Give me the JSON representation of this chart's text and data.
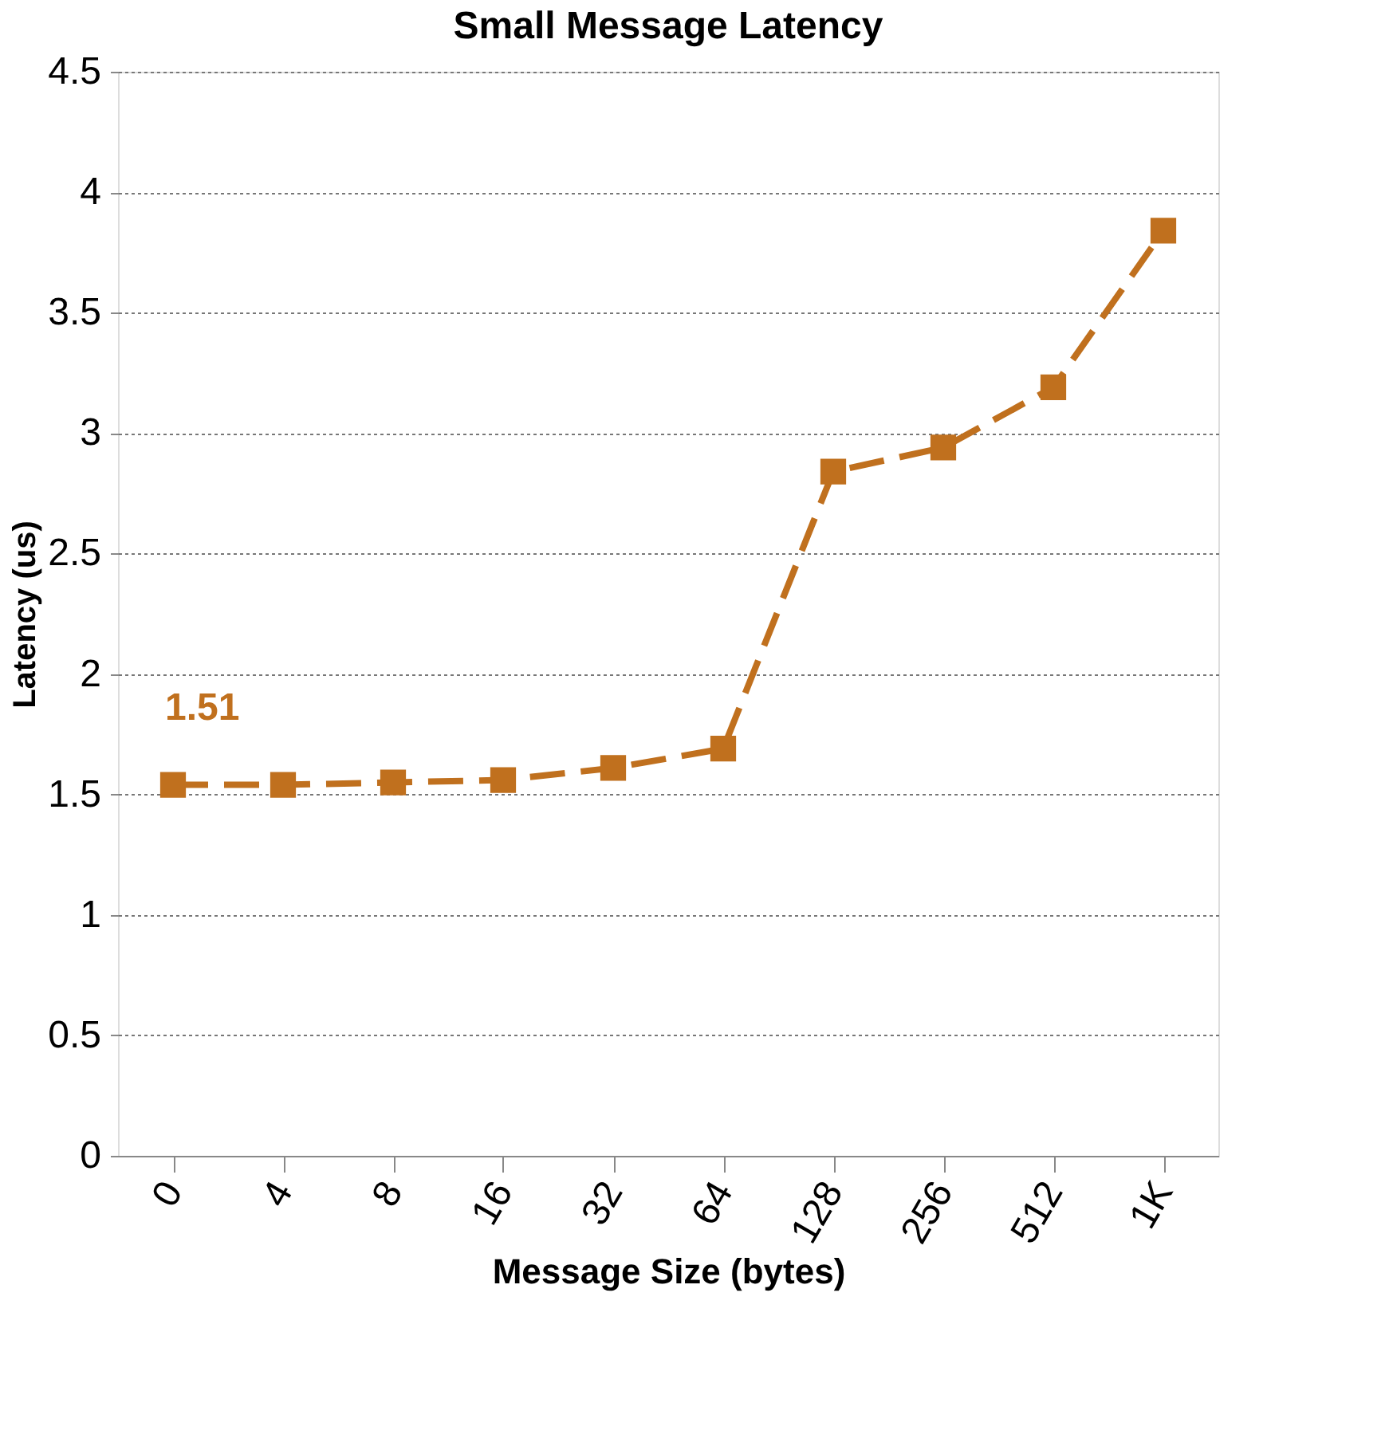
{
  "chart_data": {
    "type": "line",
    "title": "Small Message Latency",
    "xlabel": "Message Size (bytes)",
    "ylabel": "Latency (us)",
    "categories": [
      "0",
      "4",
      "8",
      "16",
      "32",
      "64",
      "128",
      "256",
      "512",
      "1K"
    ],
    "series": [
      {
        "color": "#c0701e",
        "values": [
          1.54,
          1.54,
          1.55,
          1.56,
          1.61,
          1.69,
          2.84,
          2.94,
          3.19,
          3.84
        ]
      }
    ],
    "ylim": [
      0,
      4.5
    ],
    "yticks": [
      0,
      0.5,
      1,
      1.5,
      2,
      2.5,
      3,
      3.5,
      4,
      4.5
    ],
    "grid": "y",
    "marker": "square",
    "line_style": "dashed",
    "annotations": [
      "1.51"
    ]
  }
}
